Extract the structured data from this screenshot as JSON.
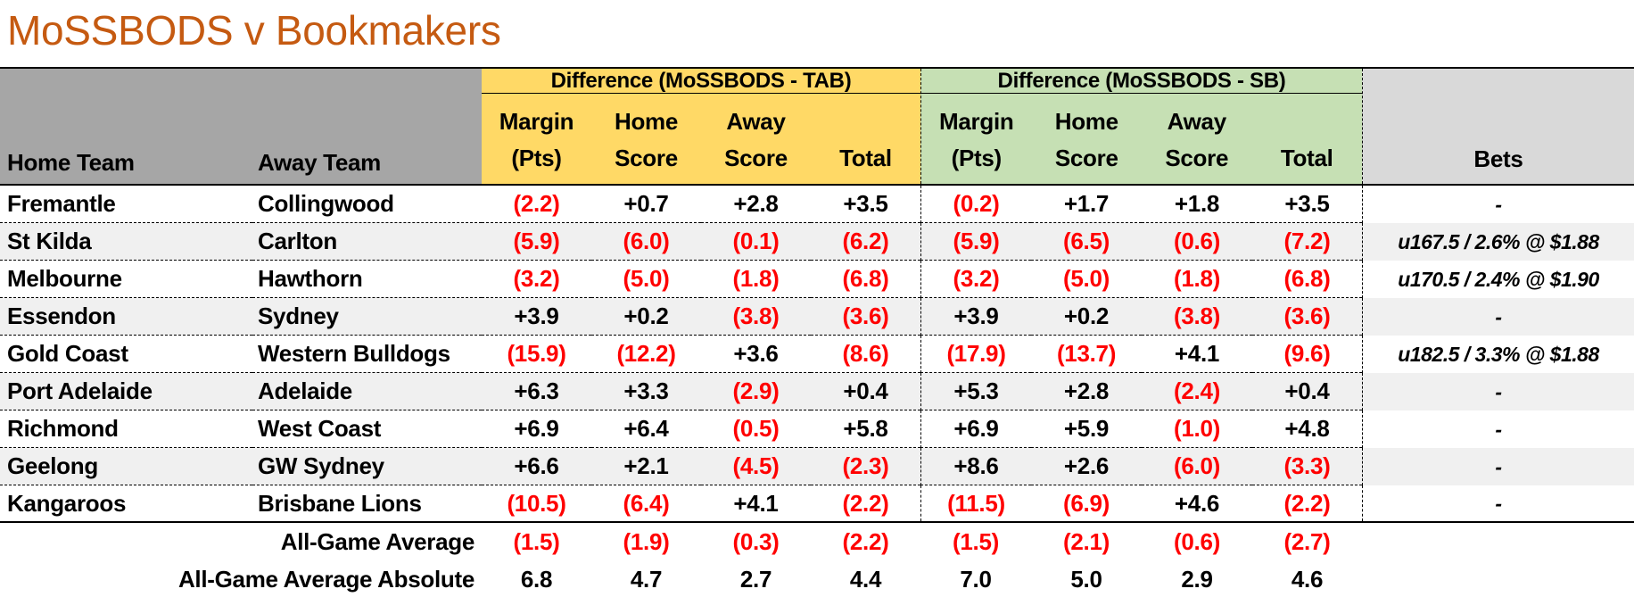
{
  "title": "MoSSBODS v Bookmakers",
  "colors": {
    "title": "#C55A11",
    "corner_header_bg": "#A6A6A6",
    "tab_section_bg": "#FFD966",
    "sb_section_bg": "#C6E0B4",
    "bets_header_bg": "#D9D9D9",
    "banded_row_bg": "#F0F0F0",
    "negative_value": "#FF0000"
  },
  "table": {
    "left_headers": {
      "home": "Home Team",
      "away": "Away Team"
    },
    "groups": [
      {
        "label": "Difference (MoSSBODS - TAB)"
      },
      {
        "label": "Difference (MoSSBODS - SB)"
      }
    ],
    "subcolumns": [
      {
        "line1": "Margin",
        "line2": "(Pts)"
      },
      {
        "line1": "Home",
        "line2": "Score"
      },
      {
        "line1": "Away",
        "line2": "Score"
      },
      {
        "line1": "",
        "line2": "Total"
      }
    ],
    "bets_header": "Bets",
    "rows": [
      {
        "home": "Fremantle",
        "away": "Collingwood",
        "tab": [
          "(2.2)",
          "+0.7",
          "+2.8",
          "+3.5"
        ],
        "sb": [
          "(0.2)",
          "+1.7",
          "+1.8",
          "+3.5"
        ],
        "bet": "-"
      },
      {
        "home": "St Kilda",
        "away": "Carlton",
        "tab": [
          "(5.9)",
          "(6.0)",
          "(0.1)",
          "(6.2)"
        ],
        "sb": [
          "(5.9)",
          "(6.5)",
          "(0.6)",
          "(7.2)"
        ],
        "bet": "u167.5 / 2.6% @ $1.88"
      },
      {
        "home": "Melbourne",
        "away": "Hawthorn",
        "tab": [
          "(3.2)",
          "(5.0)",
          "(1.8)",
          "(6.8)"
        ],
        "sb": [
          "(3.2)",
          "(5.0)",
          "(1.8)",
          "(6.8)"
        ],
        "bet": "u170.5 / 2.4% @ $1.90"
      },
      {
        "home": "Essendon",
        "away": "Sydney",
        "tab": [
          "+3.9",
          "+0.2",
          "(3.8)",
          "(3.6)"
        ],
        "sb": [
          "+3.9",
          "+0.2",
          "(3.8)",
          "(3.6)"
        ],
        "bet": "-"
      },
      {
        "home": "Gold Coast",
        "away": "Western Bulldogs",
        "tab": [
          "(15.9)",
          "(12.2)",
          "+3.6",
          "(8.6)"
        ],
        "sb": [
          "(17.9)",
          "(13.7)",
          "+4.1",
          "(9.6)"
        ],
        "bet": "u182.5 / 3.3% @ $1.88"
      },
      {
        "home": "Port Adelaide",
        "away": "Adelaide",
        "tab": [
          "+6.3",
          "+3.3",
          "(2.9)",
          "+0.4"
        ],
        "sb": [
          "+5.3",
          "+2.8",
          "(2.4)",
          "+0.4"
        ],
        "bet": "-"
      },
      {
        "home": "Richmond",
        "away": "West Coast",
        "tab": [
          "+6.9",
          "+6.4",
          "(0.5)",
          "+5.8"
        ],
        "sb": [
          "+6.9",
          "+5.9",
          "(1.0)",
          "+4.8"
        ],
        "bet": "-"
      },
      {
        "home": "Geelong",
        "away": "GW Sydney",
        "tab": [
          "+6.6",
          "+2.1",
          "(4.5)",
          "(2.3)"
        ],
        "sb": [
          "+8.6",
          "+2.6",
          "(6.0)",
          "(3.3)"
        ],
        "bet": "-"
      },
      {
        "home": "Kangaroos",
        "away": "Brisbane Lions",
        "tab": [
          "(10.5)",
          "(6.4)",
          "+4.1",
          "(2.2)"
        ],
        "sb": [
          "(11.5)",
          "(6.9)",
          "+4.6",
          "(2.2)"
        ],
        "bet": "-"
      }
    ],
    "footer": [
      {
        "label": "All-Game Average",
        "tab": [
          "(1.5)",
          "(1.9)",
          "(0.3)",
          "(2.2)"
        ],
        "sb": [
          "(1.5)",
          "(2.1)",
          "(0.6)",
          "(2.7)"
        ]
      },
      {
        "label": "All-Game Average Absolute",
        "tab": [
          "6.8",
          "4.7",
          "2.7",
          "4.4"
        ],
        "sb": [
          "7.0",
          "5.0",
          "2.9",
          "4.6"
        ]
      }
    ]
  }
}
